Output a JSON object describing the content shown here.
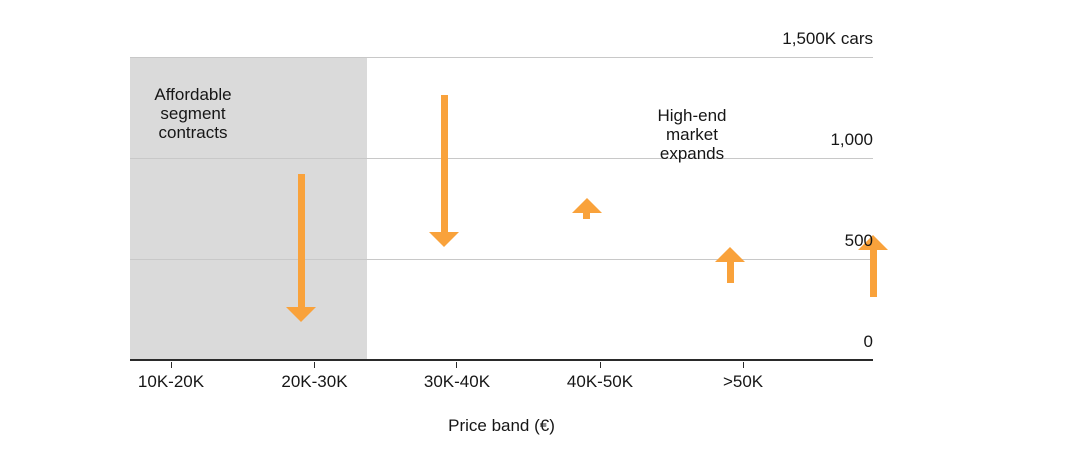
{
  "chart_data": {
    "type": "arrow",
    "title": "",
    "xlabel": "Price band (€)",
    "unit": "K cars",
    "categories": [
      "10K-20K",
      "20K-30K",
      "30K-40K",
      "40K-50K",
      ">50K"
    ],
    "y_axis": {
      "min": 0,
      "max": 1500,
      "side": "right",
      "tick_values": [
        1500,
        1000,
        500,
        0
      ],
      "tick_labels": [
        "1,500K cars",
        "1,000",
        "500",
        "0"
      ]
    },
    "arrows": [
      {
        "category": "10K-20K",
        "direction": "down",
        "from": 920,
        "to": 190
      },
      {
        "category": "20K-30K",
        "direction": "down",
        "from": 1310,
        "to": 560
      },
      {
        "category": "30K-40K",
        "direction": "up",
        "from": 700,
        "to": 800
      },
      {
        "category": "40K-50K",
        "direction": "up",
        "from": 380,
        "to": 560
      },
      {
        "category": ">50K",
        "direction": "up",
        "from": 310,
        "to": 620
      }
    ],
    "annotations": [
      {
        "text": "Affordable\nsegment\ncontracts",
        "over_categories": [
          "10K-20K",
          "20K-30K"
        ],
        "shaded": true
      },
      {
        "text": "High-end\nmarket\nexpands",
        "over_categories": [
          "40K-50K",
          ">50K"
        ],
        "shaded": false
      }
    ],
    "shaded_region": {
      "categories": [
        "10K-20K",
        "20K-30K"
      ],
      "color": "#dadada"
    },
    "colors": {
      "arrow": "#f9a23b",
      "shaded_region": "#dadada",
      "gridline": "#c8c8c8",
      "axis": "#2a2a2a",
      "text": "#161616",
      "background": "#ffffff"
    },
    "layout": {
      "grid": true,
      "legend": "none",
      "band_center_frac": [
        0.0552,
        0.2483,
        0.4401,
        0.6326,
        0.8251
      ],
      "shaded_end_frac": 0.319
    }
  }
}
